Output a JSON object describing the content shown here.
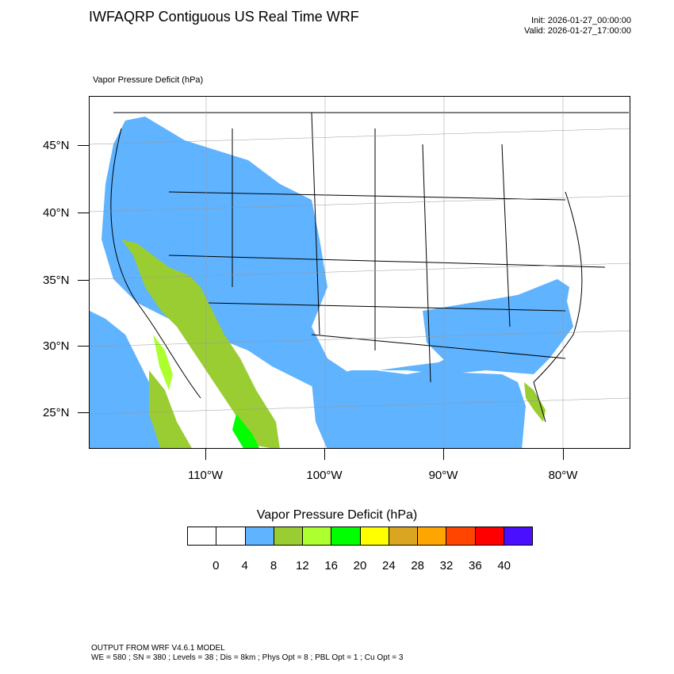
{
  "header": {
    "title": "IWFAQRP Contiguous US Real Time WRF",
    "init": "Init: 2026-01-27_00:00:00",
    "valid": "Valid: 2026-01-27_17:00:00"
  },
  "map": {
    "variable_label": "Vapor Pressure Deficit   (hPa)",
    "lat_labels": [
      "45°N",
      "40°N",
      "35°N",
      "30°N",
      "25°N"
    ],
    "lon_labels": [
      "110°W",
      "100°W",
      "90°W",
      "80°W"
    ]
  },
  "legend": {
    "title": "Vapor Pressure Deficit  (hPa)",
    "ticks": [
      "0",
      "4",
      "8",
      "12",
      "16",
      "20",
      "24",
      "28",
      "32",
      "36",
      "40"
    ],
    "colors": [
      "#ffffff",
      "#ffffff",
      "#5fb3ff",
      "#9acd32",
      "#adff2f",
      "#00ff00",
      "#ffff00",
      "#daa520",
      "#ffa500",
      "#ff4500",
      "#ff0000",
      "#4b0fff"
    ]
  },
  "footer": {
    "line1": "OUTPUT FROM WRF V4.6.1 MODEL",
    "line2": "WE = 580 ; SN = 380 ; Levels = 38 ; Dis = 8km ; Phys Opt = 8 ; PBL Opt = 1 ; Cu Opt = 3"
  }
}
